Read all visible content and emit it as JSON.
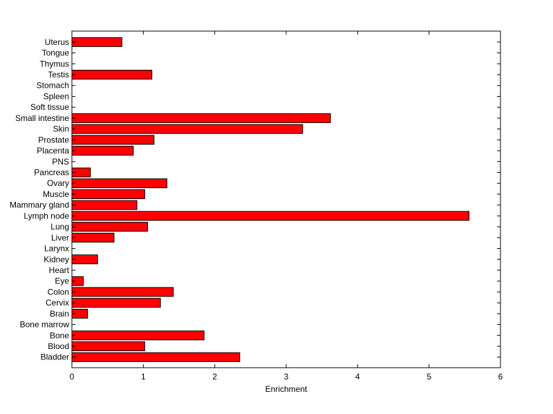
{
  "chart_data": {
    "type": "bar",
    "orientation": "horizontal",
    "title": "",
    "xlabel": "Enrichment",
    "ylabel": "",
    "xlim": [
      0,
      6
    ],
    "xticks": [
      "0",
      "1",
      "2",
      "3",
      "4",
      "5",
      "6"
    ],
    "grid": false,
    "legend": "none",
    "bar_color": "#ff0000",
    "categories": [
      "Bladder",
      "Blood",
      "Bone",
      "Bone marrow",
      "Brain",
      "Cervix",
      "Colon",
      "Eye",
      "Heart",
      "Kidney",
      "Larynx",
      "Liver",
      "Lung",
      "Lymph node",
      "Mammary gland",
      "Muscle",
      "Ovary",
      "Pancreas",
      "PNS",
      "Placenta",
      "Prostate",
      "Skin",
      "Small intestine",
      "Soft tissue",
      "Spleen",
      "Stomach",
      "Testis",
      "Thymus",
      "Tongue",
      "Uterus"
    ],
    "values": [
      2.35,
      1.02,
      1.85,
      0,
      0.22,
      1.24,
      1.42,
      0.16,
      0,
      0.36,
      0,
      0.59,
      1.06,
      5.56,
      0.91,
      1.02,
      1.33,
      0.26,
      0,
      0.86,
      1.15,
      3.23,
      3.62,
      0,
      0,
      0,
      1.12,
      0,
      0,
      0.7
    ]
  }
}
